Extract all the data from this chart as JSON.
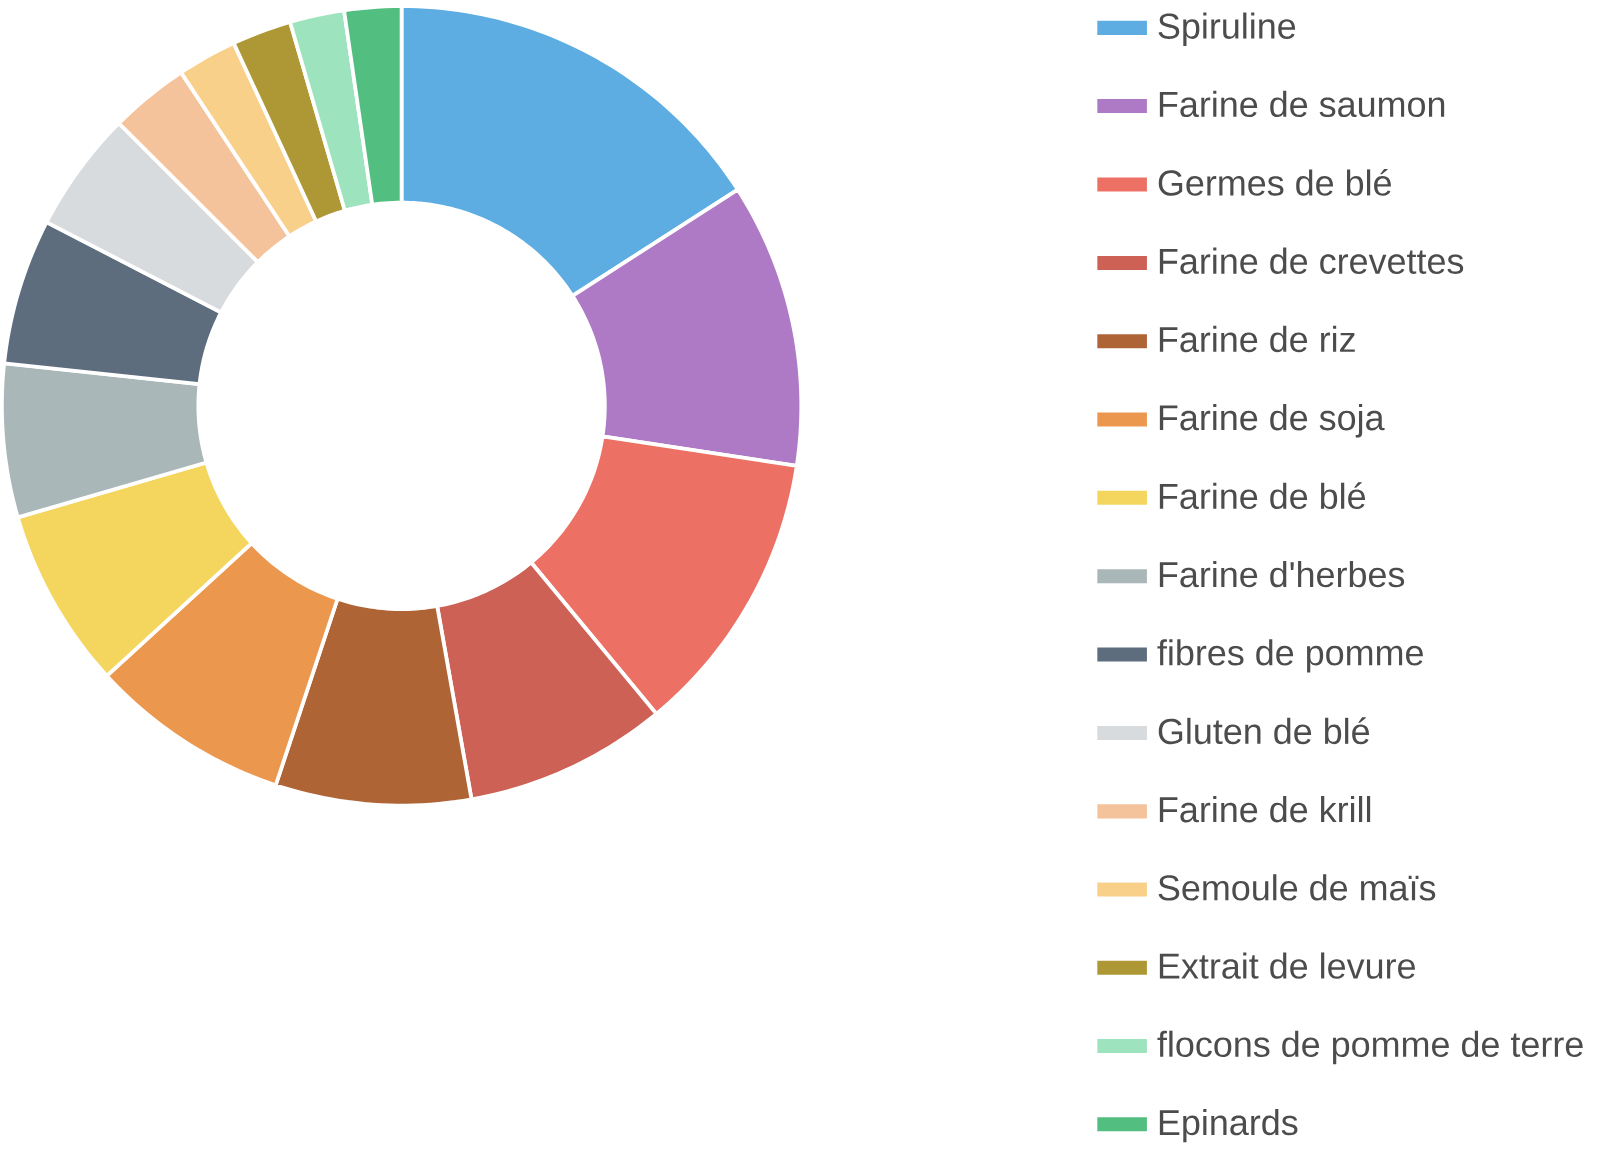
{
  "chart_data": {
    "type": "donut",
    "categories": [
      "Spiruline",
      "Farine de saumon",
      "Germes de blé",
      "Farine de crevettes",
      "Farine de riz",
      "Farine de soja",
      "Farine de blé",
      "Farine d'herbes",
      "fibres de pomme",
      "Gluten de blé",
      "Farine de krill",
      "Semoule de maïs",
      "Extrait de levure",
      "flocons de pomme de terre",
      "Epinards"
    ],
    "values": [
      15.9,
      11.5,
      11.6,
      8.2,
      7.9,
      8.1,
      7.3,
      6.2,
      5.9,
      4.9,
      3.2,
      2.4,
      2.4,
      2.2,
      2.3
    ],
    "colors": [
      "#5dade2",
      "#af7ac5",
      "#ec7063",
      "#cd6155",
      "#af6436",
      "#eb984e",
      "#f4d65e",
      "#aab7b8",
      "#5d6d7e",
      "#d7dbdd",
      "#f5c39b",
      "#f8d08a",
      "#ae9836",
      "#9de3be",
      "#52be80"
    ],
    "legend": "right"
  }
}
